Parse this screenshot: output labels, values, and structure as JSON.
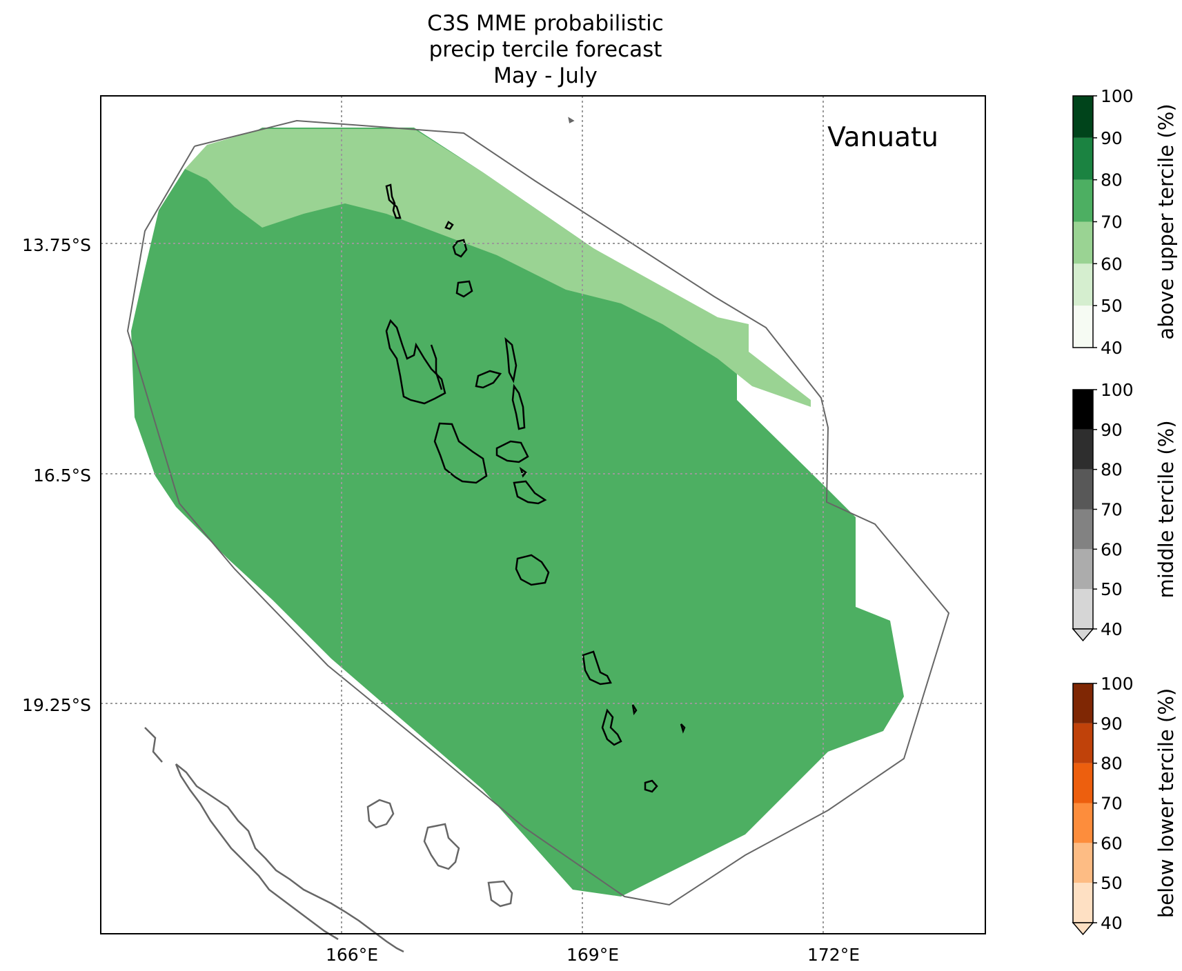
{
  "title": {
    "line1": "C3S MME probabilistic",
    "line2": "precip tercile forecast",
    "line3": "May - July"
  },
  "map": {
    "region_label": "Vanuatu",
    "lat_ticks": [
      "13.75°S",
      "16.5°S",
      "19.25°S"
    ],
    "lon_ticks": [
      "166°E",
      "169°E",
      "172°E"
    ],
    "fill_colors": {
      "above_60_70": "#9ad393",
      "above_70_80": "#4daf62"
    },
    "outline_color": "#666666"
  },
  "colorbars": [
    {
      "label": "above upper tercile (%)",
      "ticks": [
        "100",
        "90",
        "80",
        "70",
        "60",
        "50",
        "40"
      ],
      "colors": [
        "#f6fbf3",
        "#d5eecf",
        "#9ad393",
        "#4daf62",
        "#1b8341",
        "#00441b"
      ],
      "extend_min": false
    },
    {
      "label": "middle tercile (%)",
      "ticks": [
        "100",
        "90",
        "80",
        "70",
        "60",
        "50",
        "40"
      ],
      "colors": [
        "#d6d6d6",
        "#acacac",
        "#828282",
        "#585858",
        "#2e2e2e",
        "#000000"
      ],
      "extend_min": true
    },
    {
      "label": "below lower tercile (%)",
      "ticks": [
        "100",
        "90",
        "80",
        "70",
        "60",
        "50",
        "40"
      ],
      "colors": [
        "#fee0c3",
        "#fdbc84",
        "#fd8d3c",
        "#ed5f0e",
        "#c0420a",
        "#7f2704"
      ],
      "extend_min": true
    }
  ]
}
